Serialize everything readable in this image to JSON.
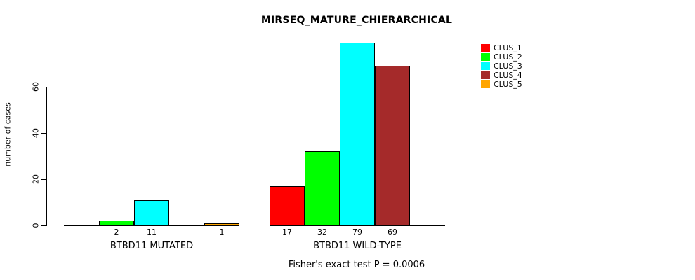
{
  "chart_data": {
    "type": "bar",
    "title": "MIRSEQ_MATURE_CHIERARCHICAL",
    "xlabel": "",
    "ylabel": "number of cases",
    "ylim": [
      0,
      80
    ],
    "yticks": [
      0,
      20,
      40,
      60
    ],
    "grid": false,
    "legend_position": "right-outside",
    "categories": [
      "BTBD11 MUTATED",
      "BTBD11 WILD-TYPE"
    ],
    "series": [
      {
        "name": "CLUS_1",
        "color": "#FF0000",
        "values": [
          0,
          17
        ]
      },
      {
        "name": "CLUS_2",
        "color": "#00FF00",
        "values": [
          2,
          32
        ]
      },
      {
        "name": "CLUS_3",
        "color": "#00FFFF",
        "values": [
          11,
          79
        ]
      },
      {
        "name": "CLUS_4",
        "color": "#A52A2A",
        "values": [
          0,
          69
        ]
      },
      {
        "name": "CLUS_5",
        "color": "#FFA500",
        "values": [
          1,
          0
        ]
      }
    ],
    "bar_value_labels": {
      "BTBD11 MUTATED": [
        null,
        2,
        11,
        null,
        1
      ],
      "BTBD11 WILD-TYPE": [
        17,
        32,
        79,
        69,
        null
      ]
    },
    "annotation": "Fisher's exact test P = 0.0006",
    "axis_color": "#000000",
    "bar_border_color": "#000000"
  }
}
